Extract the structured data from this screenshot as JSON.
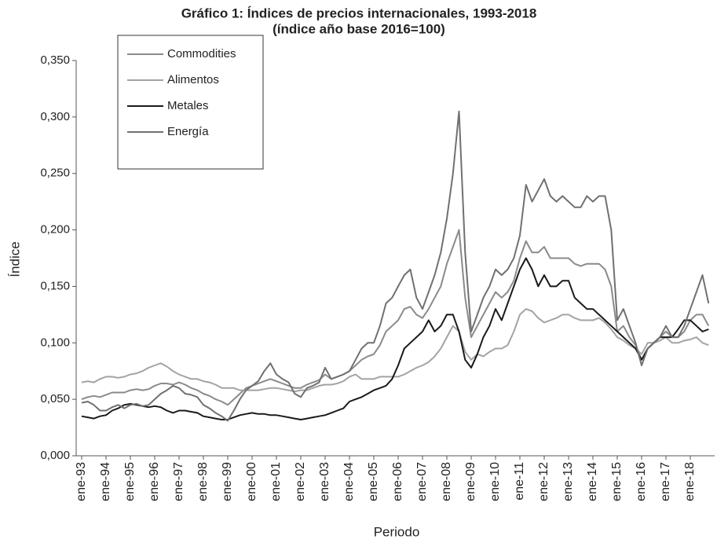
{
  "chart_data": {
    "type": "line",
    "title": "Gráfico 1: Índices de precios internacionales, 1993-2018",
    "subtitle": "(índice año base 2016=100)",
    "y_label": "Índice",
    "x_label": "Periodo",
    "categories": [
      "ene-93",
      null,
      null,
      null,
      "ene-94",
      null,
      null,
      null,
      "ene-95",
      null,
      null,
      null,
      "ene-96",
      null,
      null,
      null,
      "ene-97",
      null,
      null,
      null,
      "ene-98",
      null,
      null,
      null,
      "ene-99",
      null,
      null,
      null,
      "ene-00",
      null,
      null,
      null,
      "ene-01",
      null,
      null,
      null,
      "ene-02",
      null,
      null,
      null,
      "ene-03",
      null,
      null,
      null,
      "ene-04",
      null,
      null,
      null,
      "ene-05",
      null,
      null,
      null,
      "ene-06",
      null,
      null,
      null,
      "ene-07",
      null,
      null,
      null,
      "ene-08",
      null,
      null,
      null,
      "ene-09",
      null,
      null,
      null,
      "ene-10",
      null,
      null,
      null,
      "ene-11",
      null,
      null,
      null,
      "ene-12",
      null,
      null,
      null,
      "ene-13",
      null,
      null,
      null,
      "ene-14",
      null,
      null,
      null,
      "ene-15",
      null,
      null,
      null,
      "ene-16",
      null,
      null,
      null,
      "ene-17",
      null,
      null,
      null,
      "ene-18",
      null,
      null,
      null
    ],
    "series": [
      {
        "name": "Commodities",
        "color": "#8a8a8a",
        "values": [
          0.05,
          0.052,
          0.053,
          0.052,
          0.054,
          0.056,
          0.056,
          0.056,
          0.058,
          0.059,
          0.058,
          0.059,
          0.062,
          0.064,
          0.064,
          0.063,
          0.065,
          0.063,
          0.06,
          0.058,
          0.055,
          0.053,
          0.05,
          0.048,
          0.045,
          0.05,
          0.055,
          0.06,
          0.062,
          0.064,
          0.066,
          0.068,
          0.066,
          0.064,
          0.062,
          0.06,
          0.06,
          0.063,
          0.065,
          0.067,
          0.072,
          0.068,
          0.07,
          0.072,
          0.075,
          0.08,
          0.085,
          0.088,
          0.09,
          0.098,
          0.11,
          0.115,
          0.12,
          0.13,
          0.132,
          0.125,
          0.122,
          0.13,
          0.14,
          0.15,
          0.17,
          0.185,
          0.2,
          0.14,
          0.105,
          0.115,
          0.125,
          0.135,
          0.145,
          0.14,
          0.145,
          0.155,
          0.175,
          0.19,
          0.18,
          0.18,
          0.185,
          0.175,
          0.175,
          0.175,
          0.175,
          0.17,
          0.168,
          0.17,
          0.17,
          0.17,
          0.165,
          0.15,
          0.11,
          0.115,
          0.105,
          0.098,
          0.085,
          0.095,
          0.1,
          0.105,
          0.11,
          0.105,
          0.105,
          0.11,
          0.12,
          0.125,
          0.125,
          0.115
        ]
      },
      {
        "name": "Alimentos",
        "color": "#a3a3a3",
        "values": [
          0.065,
          0.066,
          0.065,
          0.068,
          0.07,
          0.07,
          0.069,
          0.07,
          0.072,
          0.073,
          0.075,
          0.078,
          0.08,
          0.082,
          0.079,
          0.075,
          0.072,
          0.07,
          0.068,
          0.068,
          0.066,
          0.065,
          0.063,
          0.06,
          0.06,
          0.06,
          0.058,
          0.058,
          0.058,
          0.058,
          0.059,
          0.06,
          0.06,
          0.059,
          0.058,
          0.057,
          0.058,
          0.058,
          0.06,
          0.062,
          0.063,
          0.063,
          0.064,
          0.066,
          0.07,
          0.072,
          0.068,
          0.068,
          0.068,
          0.07,
          0.07,
          0.07,
          0.07,
          0.072,
          0.075,
          0.078,
          0.08,
          0.083,
          0.088,
          0.095,
          0.105,
          0.115,
          0.11,
          0.092,
          0.085,
          0.09,
          0.088,
          0.092,
          0.095,
          0.095,
          0.098,
          0.11,
          0.125,
          0.13,
          0.128,
          0.122,
          0.118,
          0.12,
          0.122,
          0.125,
          0.125,
          0.122,
          0.12,
          0.12,
          0.12,
          0.122,
          0.118,
          0.112,
          0.105,
          0.102,
          0.098,
          0.095,
          0.09,
          0.1,
          0.1,
          0.102,
          0.105,
          0.1,
          0.1,
          0.102,
          0.103,
          0.105,
          0.1,
          0.098
        ]
      },
      {
        "name": "Metales",
        "color": "#1a1a1a",
        "values": [
          0.035,
          0.034,
          0.033,
          0.035,
          0.036,
          0.04,
          0.042,
          0.045,
          0.046,
          0.045,
          0.044,
          0.043,
          0.044,
          0.043,
          0.04,
          0.038,
          0.04,
          0.04,
          0.039,
          0.038,
          0.035,
          0.034,
          0.033,
          0.032,
          0.032,
          0.034,
          0.036,
          0.037,
          0.038,
          0.037,
          0.037,
          0.036,
          0.036,
          0.035,
          0.034,
          0.033,
          0.032,
          0.033,
          0.034,
          0.035,
          0.036,
          0.038,
          0.04,
          0.042,
          0.048,
          0.05,
          0.052,
          0.055,
          0.058,
          0.06,
          0.062,
          0.068,
          0.08,
          0.095,
          0.1,
          0.105,
          0.11,
          0.12,
          0.11,
          0.115,
          0.125,
          0.125,
          0.11,
          0.085,
          0.078,
          0.09,
          0.105,
          0.115,
          0.13,
          0.12,
          0.135,
          0.15,
          0.165,
          0.175,
          0.165,
          0.15,
          0.16,
          0.15,
          0.15,
          0.155,
          0.155,
          0.14,
          0.135,
          0.13,
          0.13,
          0.125,
          0.12,
          0.115,
          0.11,
          0.105,
          0.1,
          0.095,
          0.085,
          0.095,
          0.1,
          0.105,
          0.105,
          0.105,
          0.112,
          0.12,
          0.12,
          0.115,
          0.11,
          0.112
        ]
      },
      {
        "name": "Energía",
        "color": "#707070",
        "values": [
          0.047,
          0.048,
          0.045,
          0.04,
          0.04,
          0.043,
          0.045,
          0.042,
          0.045,
          0.046,
          0.044,
          0.045,
          0.05,
          0.055,
          0.058,
          0.062,
          0.06,
          0.055,
          0.054,
          0.052,
          0.045,
          0.042,
          0.038,
          0.035,
          0.031,
          0.04,
          0.05,
          0.058,
          0.062,
          0.066,
          0.075,
          0.082,
          0.072,
          0.068,
          0.065,
          0.055,
          0.052,
          0.06,
          0.062,
          0.065,
          0.078,
          0.068,
          0.07,
          0.072,
          0.075,
          0.085,
          0.095,
          0.1,
          0.1,
          0.115,
          0.135,
          0.14,
          0.15,
          0.16,
          0.165,
          0.14,
          0.13,
          0.145,
          0.16,
          0.18,
          0.21,
          0.25,
          0.305,
          0.18,
          0.11,
          0.125,
          0.14,
          0.15,
          0.165,
          0.16,
          0.165,
          0.175,
          0.195,
          0.24,
          0.225,
          0.235,
          0.245,
          0.23,
          0.225,
          0.23,
          0.225,
          0.22,
          0.22,
          0.23,
          0.225,
          0.23,
          0.23,
          0.2,
          0.12,
          0.13,
          0.115,
          0.1,
          0.08,
          0.095,
          0.1,
          0.105,
          0.115,
          0.105,
          0.105,
          0.115,
          0.13,
          0.145,
          0.16,
          0.135
        ]
      }
    ],
    "ylim": [
      0,
      0.35
    ],
    "yticks": [
      {
        "value": 0,
        "label": "0,000"
      },
      {
        "value": 0.05,
        "label": "0,050"
      },
      {
        "value": 0.1,
        "label": "0,100"
      },
      {
        "value": 0.15,
        "label": "0,150"
      },
      {
        "value": 0.2,
        "label": "0,200"
      },
      {
        "value": 0.25,
        "label": "0,250"
      },
      {
        "value": 0.3,
        "label": "0,300"
      },
      {
        "value": 0.35,
        "label": "0,350"
      }
    ],
    "grid": false,
    "legend": "upper left"
  }
}
